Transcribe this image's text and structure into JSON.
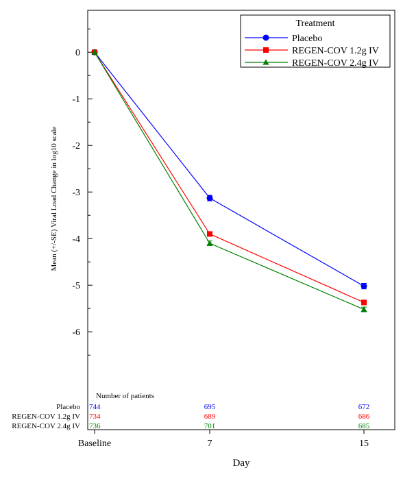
{
  "chart_data": {
    "type": "line",
    "title": "",
    "xlabel": "Day",
    "ylabel": "Mean (+/-SE) Viral Load Change in log10 scale",
    "categories": [
      "Baseline",
      "7",
      "15"
    ],
    "y_ticks": [
      "0",
      "-1",
      "-2",
      "-3",
      "-4",
      "-5",
      "-6"
    ],
    "ylim": [
      -8.1,
      0.9
    ],
    "legend": {
      "title": "Treatment",
      "placement": "top-right"
    },
    "grid": false,
    "series": [
      {
        "name": "Placebo",
        "color": "#0000ff",
        "marker": "circle",
        "values": [
          0.0,
          -3.13,
          -5.02
        ],
        "se": [
          0.0,
          0.06,
          0.06
        ]
      },
      {
        "name": "REGEN-COV 1.2g IV",
        "color": "#ff0000",
        "marker": "square",
        "values": [
          0.0,
          -3.9,
          -5.37
        ],
        "se": [
          0.0,
          0.05,
          0.05
        ]
      },
      {
        "name": "REGEN-COV 2.4g IV",
        "color": "#008000",
        "marker": "triangle",
        "values": [
          0.0,
          -4.1,
          -5.52
        ],
        "se": [
          0.0,
          0.05,
          0.05
        ]
      }
    ],
    "patients_table": {
      "title": "Number of patients",
      "rows": [
        {
          "label": "Placebo",
          "color": "#0000ff",
          "counts": [
            "744",
            "695",
            "672"
          ]
        },
        {
          "label": "REGEN-COV 1.2g IV",
          "color": "#ff0000",
          "counts": [
            "734",
            "689",
            "686"
          ]
        },
        {
          "label": "REGEN-COV 2.4g IV",
          "color": "#008000",
          "counts": [
            "736",
            "701",
            "685"
          ]
        }
      ]
    }
  }
}
